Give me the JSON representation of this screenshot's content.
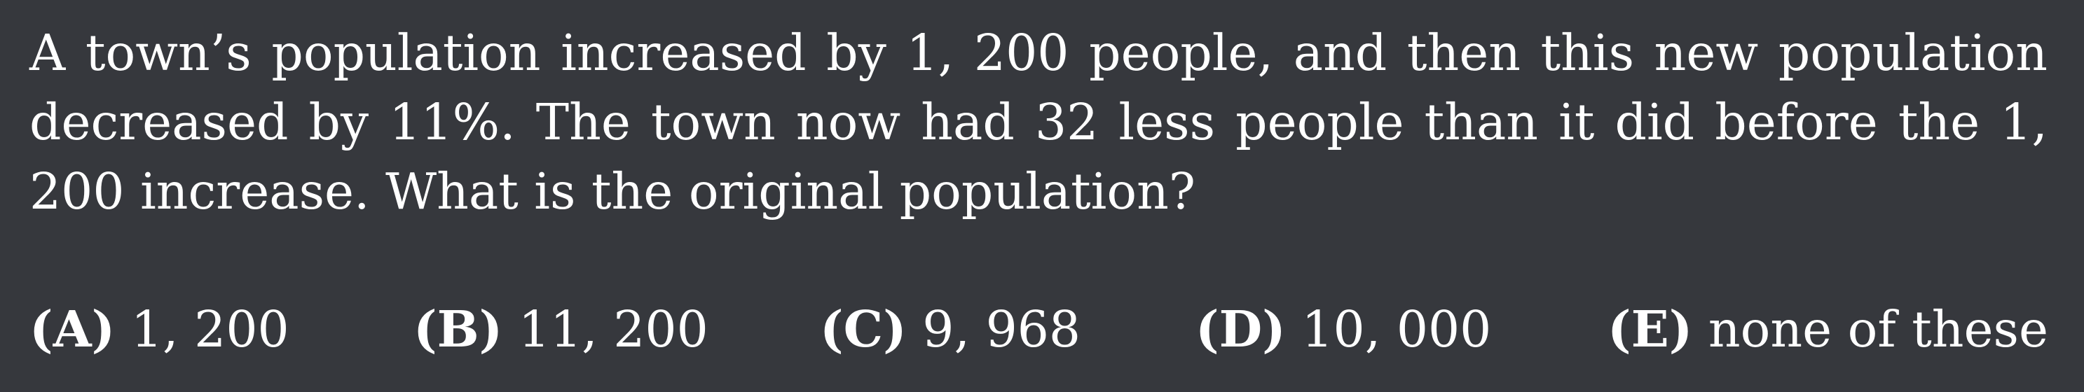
{
  "question": {
    "text": "A town’s population increased by 1, 200 people, and then this new population decreased by 11%.  The town now had 32 less people than it did before the 1, 200 increase. What is the original population?"
  },
  "choices": [
    {
      "letter": "(A)",
      "value": "1, 200"
    },
    {
      "letter": "(B)",
      "value": "11, 200"
    },
    {
      "letter": "(C)",
      "value": "9, 968"
    },
    {
      "letter": "(D)",
      "value": "10, 000"
    },
    {
      "letter": "(E)",
      "value": "none of these"
    }
  ]
}
